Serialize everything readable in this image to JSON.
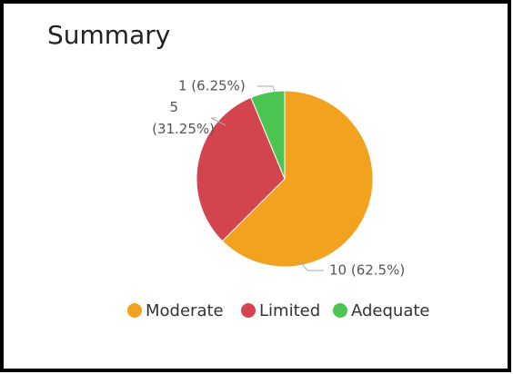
{
  "chart_data": {
    "type": "pie",
    "title": "Summary",
    "categories": [
      "Moderate",
      "Limited",
      "Adequate"
    ],
    "values": [
      10,
      5,
      1
    ],
    "value_labels": [
      "10 (62.5%)",
      "5 (31.25%)",
      "1 (6.25%)"
    ],
    "colors": [
      "#f2a21f",
      "#d3444f",
      "#4cc451"
    ],
    "legend": "bottom"
  }
}
